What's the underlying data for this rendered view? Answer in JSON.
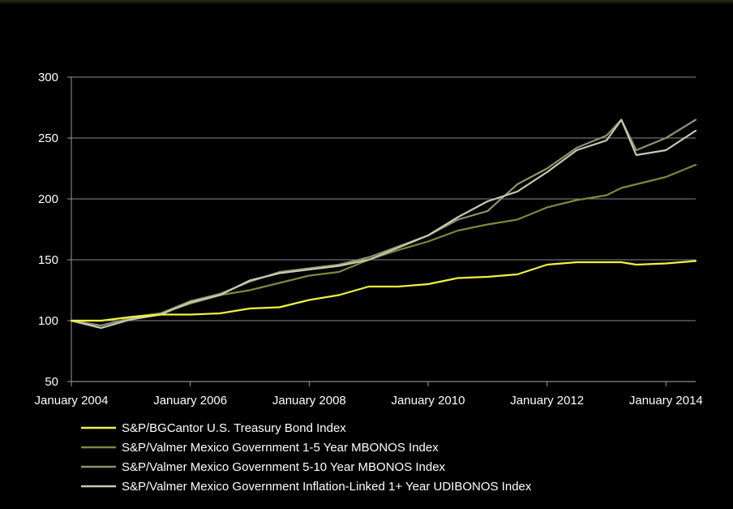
{
  "chart_data": {
    "type": "line",
    "title": "",
    "xlabel": "",
    "ylabel": "",
    "x_range": [
      "2004-01",
      "2014-07"
    ],
    "ylim": [
      50,
      300
    ],
    "y_ticks": [
      50,
      100,
      150,
      200,
      250,
      300
    ],
    "y_tick_labels": [
      "50",
      "100",
      "150",
      "200",
      "250",
      "300"
    ],
    "x_ticks": [
      "2004-01",
      "2006-01",
      "2008-01",
      "2010-01",
      "2012-01",
      "2014-01"
    ],
    "x_tick_labels": [
      "January 2004",
      "January 2006",
      "January 2008",
      "January 2010",
      "January 2012",
      "January 2014"
    ],
    "grid": "horizontal",
    "legend_position": "bottom",
    "x_points": [
      "2004-01",
      "2004-07",
      "2005-01",
      "2005-07",
      "2006-01",
      "2006-07",
      "2007-01",
      "2007-07",
      "2008-01",
      "2008-07",
      "2009-01",
      "2009-07",
      "2010-01",
      "2010-07",
      "2011-01",
      "2011-07",
      "2012-01",
      "2012-07",
      "2013-01",
      "2013-04",
      "2013-07",
      "2014-01",
      "2014-07"
    ],
    "series": [
      {
        "name": "S&P/BGCantor U.S. Treasury Bond Index",
        "color": "#f0f53c",
        "values": [
          100,
          100,
          103,
          105,
          105,
          106,
          110,
          111,
          117,
          121,
          128,
          128,
          130,
          135,
          136,
          138,
          146,
          148,
          148,
          148,
          146,
          147,
          149
        ]
      },
      {
        "name": "S&P/Valmer Mexico Government 1-5 Year MBONOS Index",
        "color": "#7c8a3a",
        "values": [
          100,
          100,
          103,
          106,
          114,
          121,
          125,
          131,
          137,
          140,
          150,
          158,
          165,
          174,
          179,
          183,
          193,
          199,
          203,
          209,
          212,
          218,
          228
        ]
      },
      {
        "name": "S&P/Valmer Mexico Government 5-10 Year MBONOS Index",
        "color": "#8c9470",
        "values": [
          100,
          96,
          102,
          106,
          116,
          122,
          132,
          140,
          143,
          146,
          152,
          161,
          170,
          183,
          190,
          212,
          225,
          242,
          252,
          265,
          240,
          250,
          265
        ]
      },
      {
        "name": "S&P/Valmer Mexico Government Inflation-Linked 1+ Year UDIBONOS Index",
        "color": "#c8cbb0",
        "values": [
          100,
          94,
          101,
          105,
          115,
          121,
          133,
          139,
          142,
          145,
          150,
          160,
          170,
          185,
          198,
          206,
          222,
          240,
          248,
          265,
          236,
          240,
          256
        ]
      }
    ]
  }
}
